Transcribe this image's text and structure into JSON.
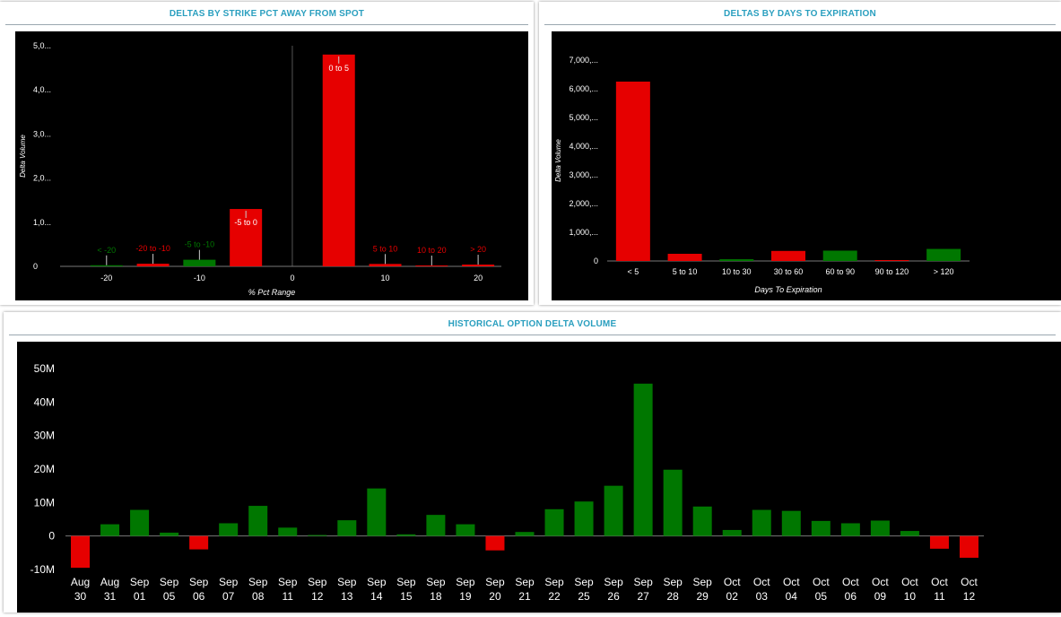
{
  "panels": {
    "strike": {
      "title": "DELTAS BY STRIKE PCT AWAY FROM SPOT"
    },
    "days": {
      "title": "DELTAS BY DAYS TO EXPIRATION"
    },
    "history": {
      "title": "HISTORICAL OPTION DELTA VOLUME"
    }
  },
  "colors": {
    "positive": "#007700",
    "negative": "#e60000",
    "title": "#2a9fbf",
    "axis_text": "#ffffff",
    "background": "#000000"
  },
  "chart_data": [
    {
      "id": "strike",
      "type": "bar",
      "title": "DELTAS BY STRIKE PCT AWAY FROM SPOT",
      "xlabel": "% Pct Range",
      "ylabel": "Delta Volume",
      "x_ticks": [
        "-20",
        "-10",
        "0",
        "10",
        "20"
      ],
      "y_ticks": [
        "0",
        "1,0...",
        "2,0...",
        "3,0...",
        "4,0...",
        "5,0..."
      ],
      "ylim": [
        0,
        5000
      ],
      "xlim": [
        -25,
        22.5
      ],
      "bars": [
        {
          "label": "< -20",
          "x": -20,
          "value": 25,
          "sign": "positive"
        },
        {
          "label": "-20 to -10",
          "x": -15,
          "value": 60,
          "sign": "negative"
        },
        {
          "label": "-5 to -10",
          "x": -10,
          "value": 150,
          "sign": "positive"
        },
        {
          "label": "-5 to 0",
          "x": -5,
          "value": 1300,
          "sign": "negative"
        },
        {
          "label": "0 to 5",
          "x": 5,
          "value": 4800,
          "sign": "negative"
        },
        {
          "label": "5 to 10",
          "x": 10,
          "value": 55,
          "sign": "negative"
        },
        {
          "label": "10 to 20",
          "x": 15,
          "value": 15,
          "sign": "negative"
        },
        {
          "label": "> 20",
          "x": 20,
          "value": 40,
          "sign": "negative"
        }
      ]
    },
    {
      "id": "days",
      "type": "bar",
      "title": "DELTAS BY DAYS TO EXPIRATION",
      "xlabel": "Days To Expiration",
      "ylabel": "Delta Volume",
      "categories": [
        "< 5",
        "5 to 10",
        "10 to 30",
        "30 to 60",
        "60 to 90",
        "90 to 120",
        "> 120"
      ],
      "values": [
        6250,
        250,
        60,
        350,
        360,
        15,
        420
      ],
      "signs": [
        "negative",
        "negative",
        "positive",
        "negative",
        "positive",
        "negative",
        "positive"
      ],
      "y_ticks": [
        "0",
        "1,000,...",
        "2,000,...",
        "3,000,...",
        "4,000,...",
        "5,000,...",
        "6,000,...",
        "7,000,..."
      ],
      "ylim": [
        0,
        7000
      ]
    },
    {
      "id": "history",
      "type": "bar",
      "title": "HISTORICAL OPTION DELTA VOLUME",
      "categories": [
        [
          "Aug",
          "30"
        ],
        [
          "Aug",
          "31"
        ],
        [
          "Sep",
          "01"
        ],
        [
          "Sep",
          "05"
        ],
        [
          "Sep",
          "06"
        ],
        [
          "Sep",
          "07"
        ],
        [
          "Sep",
          "08"
        ],
        [
          "Sep",
          "11"
        ],
        [
          "Sep",
          "12"
        ],
        [
          "Sep",
          "13"
        ],
        [
          "Sep",
          "14"
        ],
        [
          "Sep",
          "15"
        ],
        [
          "Sep",
          "18"
        ],
        [
          "Sep",
          "19"
        ],
        [
          "Sep",
          "20"
        ],
        [
          "Sep",
          "21"
        ],
        [
          "Sep",
          "22"
        ],
        [
          "Sep",
          "25"
        ],
        [
          "Sep",
          "26"
        ],
        [
          "Sep",
          "27"
        ],
        [
          "Sep",
          "28"
        ],
        [
          "Sep",
          "29"
        ],
        [
          "Oct",
          "02"
        ],
        [
          "Oct",
          "03"
        ],
        [
          "Oct",
          "04"
        ],
        [
          "Oct",
          "05"
        ],
        [
          "Oct",
          "06"
        ],
        [
          "Oct",
          "09"
        ],
        [
          "Oct",
          "10"
        ],
        [
          "Oct",
          "11"
        ],
        [
          "Oct",
          "12"
        ]
      ],
      "values": [
        -9.5,
        3.5,
        7.8,
        1.0,
        -4.0,
        3.8,
        9.0,
        2.5,
        0.3,
        4.7,
        14.2,
        0.5,
        6.3,
        3.5,
        -4.3,
        1.2,
        8.0,
        10.3,
        15.0,
        45.5,
        19.8,
        8.8,
        1.8,
        7.8,
        7.5,
        4.5,
        3.8,
        4.6,
        1.5,
        -3.8,
        -6.5
      ],
      "unit": "M",
      "y_ticks": [
        "-10M",
        "0",
        "10M",
        "20M",
        "30M",
        "40M",
        "50M"
      ],
      "ylim": [
        -10,
        50
      ]
    }
  ]
}
